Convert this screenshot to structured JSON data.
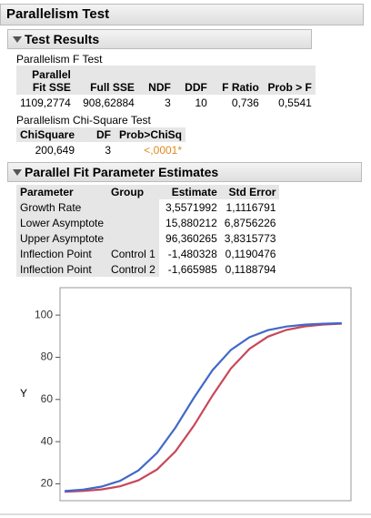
{
  "title": "Parallelism Test",
  "test_results": {
    "title": "Test Results",
    "f_test": {
      "title": "Parallelism F Test",
      "columns": [
        "Parallel Fit SSE",
        "Full SSE",
        "NDF",
        "DDF",
        "F Ratio",
        "Prob > F"
      ],
      "rows": [
        [
          "1109,2774",
          "908,62884",
          "3",
          "10",
          "0,736",
          "0,5541"
        ]
      ]
    },
    "chi_test": {
      "title": "Parallelism Chi-Square Test",
      "columns": [
        "ChiSquare",
        "DF",
        "Prob>ChiSq"
      ],
      "rows": [
        [
          "200,649",
          "3",
          "<,0001*"
        ]
      ]
    }
  },
  "estimates": {
    "title": "Parallel Fit Parameter Estimates",
    "columns": [
      "Parameter",
      "Group",
      "Estimate",
      "Std Error"
    ],
    "rows": [
      [
        "Growth Rate",
        "",
        "3,5571992",
        "1,1116791"
      ],
      [
        "Lower Asymptote",
        "",
        "15,880212",
        "6,8756226"
      ],
      [
        "Upper Asymptote",
        "",
        "96,360265",
        "3,8315773"
      ],
      [
        "Inflection Point",
        "Control 1",
        "-1,480328",
        "0,1190476"
      ],
      [
        "Inflection Point",
        "Control 2",
        "-1,665985",
        "0,1188794"
      ]
    ]
  },
  "chart_data": {
    "type": "line",
    "y_label": "Y",
    "x": [
      -3.0,
      -2.8,
      -2.6,
      -2.4,
      -2.2,
      -2.0,
      -1.8,
      -1.6,
      -1.4,
      -1.2,
      -1.0,
      -0.8,
      -0.6,
      -0.4,
      -0.2,
      0.0
    ],
    "xlim": [
      -3.05,
      0.1
    ],
    "ylim": [
      12,
      113
    ],
    "yticks": [
      20,
      40,
      60,
      80,
      100
    ],
    "series": [
      {
        "color": "#c8475a",
        "values": [
          16.24,
          16.61,
          17.35,
          18.82,
          21.65,
          26.81,
          35.41,
          47.65,
          61.82,
          74.67,
          84.0,
          89.78,
          92.99,
          94.67,
          95.52,
          95.95
        ]
      },
      {
        "color": "#4169c8",
        "values": [
          16.57,
          17.28,
          18.68,
          21.39,
          26.36,
          34.68,
          46.7,
          60.82,
          73.86,
          83.48,
          89.47,
          92.83,
          94.59,
          95.48,
          95.92,
          96.15
        ]
      }
    ]
  }
}
